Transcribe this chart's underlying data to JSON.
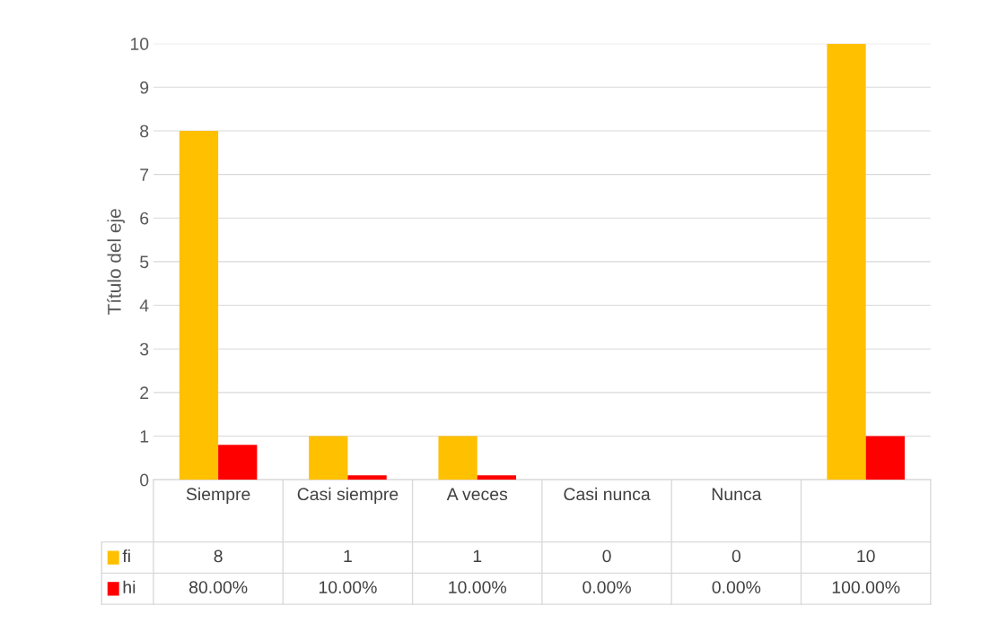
{
  "chart_data": {
    "type": "bar",
    "ylabel": "Título del eje",
    "categories": [
      "Siempre",
      "Casi siempre",
      "A veces",
      "Casi nunca",
      "Nunca",
      null
    ],
    "series": [
      {
        "name": "fi",
        "color": "#ffc000",
        "values": [
          8,
          1,
          1,
          0,
          0,
          10
        ],
        "value_labels": [
          "8",
          "1",
          "1",
          "0",
          "0",
          "10"
        ]
      },
      {
        "name": "hi",
        "color": "#ff0000",
        "values": [
          0.8,
          0.1,
          0.1,
          0,
          0,
          1
        ],
        "value_labels": [
          "80.00%",
          "10.00%",
          "10.00%",
          "0.00%",
          "0.00%",
          "100.00%"
        ]
      }
    ],
    "ylim": [
      0,
      10
    ],
    "yticks": [
      0,
      1,
      2,
      3,
      4,
      5,
      6,
      7,
      8,
      9,
      10
    ],
    "grid": "y",
    "legend": "bottom"
  }
}
